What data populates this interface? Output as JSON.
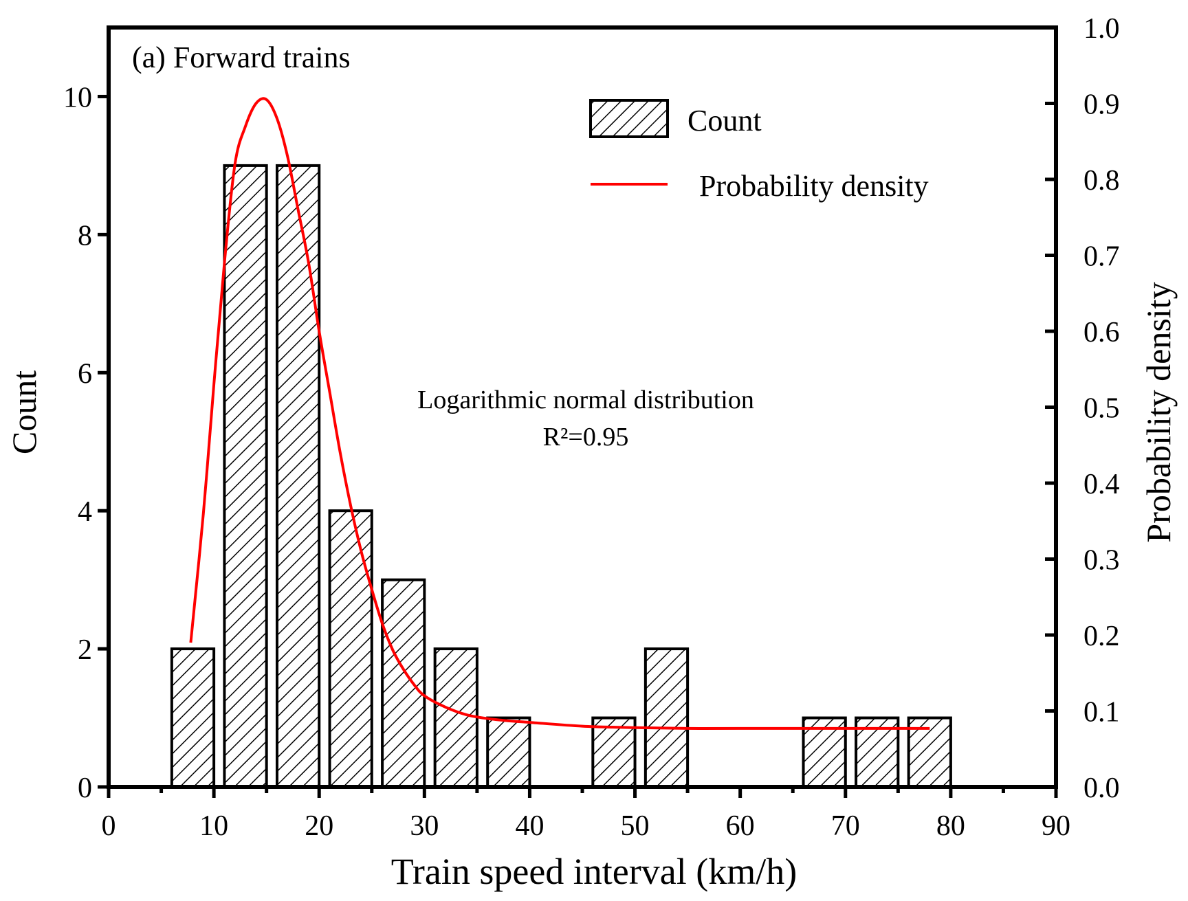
{
  "chart_data": {
    "type": "bar",
    "title": "(a) Forward trains",
    "xlabel": "Train speed interval (km/h)",
    "ylabel": "Count",
    "y2label": "Probability density",
    "xlim": [
      0,
      90
    ],
    "ylim": [
      0,
      11
    ],
    "y2lim": [
      0.0,
      1.0
    ],
    "x_ticks": [
      "0",
      "10",
      "20",
      "30",
      "40",
      "50",
      "60",
      "70",
      "80",
      "90"
    ],
    "y_ticks": [
      "0",
      "2",
      "4",
      "6",
      "8",
      "10"
    ],
    "y2_ticks": [
      "0.0",
      "0.1",
      "0.2",
      "0.3",
      "0.4",
      "0.5",
      "0.6",
      "0.7",
      "0.8",
      "0.9",
      "1.0"
    ],
    "bin_width": 4,
    "bars": [
      {
        "center": 8,
        "count": 2
      },
      {
        "center": 13,
        "count": 9
      },
      {
        "center": 18,
        "count": 9
      },
      {
        "center": 23,
        "count": 4
      },
      {
        "center": 28,
        "count": 3
      },
      {
        "center": 33,
        "count": 2
      },
      {
        "center": 38,
        "count": 1
      },
      {
        "center": 48,
        "count": 1
      },
      {
        "center": 53,
        "count": 2
      },
      {
        "center": 68,
        "count": 1
      },
      {
        "center": 73,
        "count": 1
      },
      {
        "center": 78,
        "count": 1
      }
    ],
    "density_curve": {
      "name": "Probability density",
      "color": "#ff0000",
      "x": [
        7.8,
        9,
        10,
        11,
        12,
        13,
        14,
        15,
        16,
        17,
        18,
        19,
        20,
        21,
        22,
        23,
        24,
        25,
        26,
        27,
        28,
        29,
        30,
        32,
        34,
        36,
        38,
        40,
        45,
        50,
        55,
        60,
        70,
        78
      ],
      "y": [
        0.19,
        0.36,
        0.53,
        0.69,
        0.82,
        0.87,
        0.9,
        0.905,
        0.88,
        0.83,
        0.76,
        0.69,
        0.6,
        0.52,
        0.44,
        0.37,
        0.31,
        0.26,
        0.215,
        0.18,
        0.155,
        0.135,
        0.12,
        0.105,
        0.095,
        0.09,
        0.087,
        0.085,
        0.08,
        0.078,
        0.077,
        0.077,
        0.077,
        0.077
      ]
    },
    "legend": {
      "position": "top-right",
      "items": [
        "Count",
        "Probability density"
      ]
    },
    "annotation": {
      "line1": "Logarithmic normal distribution",
      "line2": "R²=0.95"
    },
    "grid": false
  }
}
